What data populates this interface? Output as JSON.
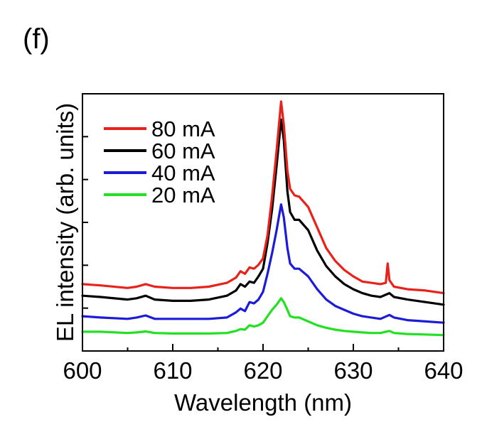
{
  "panel_label": "(f)",
  "chart_data": {
    "type": "line",
    "xlabel": "Wavelength (nm)",
    "ylabel": "EL intensity (arb. units)",
    "xlim": [
      600,
      640
    ],
    "ylim": [
      0,
      1
    ],
    "xticks": [
      600,
      610,
      620,
      630,
      640
    ],
    "y_tick_labels_shown": false,
    "grid": false,
    "legend_position": "top-left",
    "series": [
      {
        "name": "80 mA",
        "color": "#e8211b",
        "points": [
          [
            600,
            0.26
          ],
          [
            602,
            0.255
          ],
          [
            605,
            0.245
          ],
          [
            606,
            0.25
          ],
          [
            607,
            0.26
          ],
          [
            608,
            0.25
          ],
          [
            610,
            0.245
          ],
          [
            612,
            0.245
          ],
          [
            614,
            0.25
          ],
          [
            616,
            0.265
          ],
          [
            617,
            0.285
          ],
          [
            617.5,
            0.31
          ],
          [
            618,
            0.3
          ],
          [
            618.5,
            0.325
          ],
          [
            619,
            0.32
          ],
          [
            619.5,
            0.335
          ],
          [
            620,
            0.36
          ],
          [
            620.5,
            0.45
          ],
          [
            621,
            0.6
          ],
          [
            621.5,
            0.78
          ],
          [
            622,
            0.97
          ],
          [
            622.3,
            0.88
          ],
          [
            622.7,
            0.7
          ],
          [
            623,
            0.63
          ],
          [
            623.5,
            0.605
          ],
          [
            624,
            0.6
          ],
          [
            625,
            0.56
          ],
          [
            626,
            0.48
          ],
          [
            627,
            0.4
          ],
          [
            628,
            0.35
          ],
          [
            629,
            0.315
          ],
          [
            630,
            0.29
          ],
          [
            631,
            0.27
          ],
          [
            632,
            0.265
          ],
          [
            633,
            0.26
          ],
          [
            633.6,
            0.265
          ],
          [
            633.8,
            0.34
          ],
          [
            634,
            0.275
          ],
          [
            634.5,
            0.25
          ],
          [
            636,
            0.24
          ],
          [
            638,
            0.235
          ],
          [
            640,
            0.225
          ]
        ]
      },
      {
        "name": "60 mA",
        "color": "#000000",
        "points": [
          [
            600,
            0.215
          ],
          [
            602,
            0.21
          ],
          [
            605,
            0.2
          ],
          [
            606,
            0.205
          ],
          [
            607,
            0.215
          ],
          [
            608,
            0.2
          ],
          [
            610,
            0.195
          ],
          [
            612,
            0.195
          ],
          [
            614,
            0.2
          ],
          [
            616,
            0.215
          ],
          [
            617,
            0.235
          ],
          [
            617.5,
            0.26
          ],
          [
            618,
            0.25
          ],
          [
            618.5,
            0.27
          ],
          [
            619,
            0.265
          ],
          [
            619.5,
            0.29
          ],
          [
            620,
            0.32
          ],
          [
            620.5,
            0.42
          ],
          [
            621,
            0.55
          ],
          [
            621.5,
            0.72
          ],
          [
            622,
            0.9
          ],
          [
            622.3,
            0.82
          ],
          [
            622.7,
            0.62
          ],
          [
            623,
            0.54
          ],
          [
            623.5,
            0.51
          ],
          [
            624,
            0.51
          ],
          [
            625,
            0.47
          ],
          [
            626,
            0.39
          ],
          [
            627,
            0.33
          ],
          [
            628,
            0.29
          ],
          [
            629,
            0.26
          ],
          [
            630,
            0.24
          ],
          [
            631,
            0.225
          ],
          [
            632,
            0.215
          ],
          [
            633,
            0.21
          ],
          [
            634,
            0.225
          ],
          [
            634.5,
            0.21
          ],
          [
            636,
            0.2
          ],
          [
            638,
            0.19
          ],
          [
            640,
            0.18
          ]
        ]
      },
      {
        "name": "40 mA",
        "color": "#1b1bd8",
        "points": [
          [
            600,
            0.135
          ],
          [
            602,
            0.13
          ],
          [
            605,
            0.125
          ],
          [
            606,
            0.13
          ],
          [
            607,
            0.138
          ],
          [
            608,
            0.125
          ],
          [
            610,
            0.125
          ],
          [
            612,
            0.125
          ],
          [
            614,
            0.125
          ],
          [
            616,
            0.13
          ],
          [
            617,
            0.15
          ],
          [
            617.5,
            0.165
          ],
          [
            618,
            0.155
          ],
          [
            618.5,
            0.19
          ],
          [
            619,
            0.185
          ],
          [
            619.5,
            0.2
          ],
          [
            620,
            0.23
          ],
          [
            620.5,
            0.3
          ],
          [
            621,
            0.38
          ],
          [
            621.5,
            0.47
          ],
          [
            622,
            0.57
          ],
          [
            622.3,
            0.52
          ],
          [
            622.7,
            0.4
          ],
          [
            623,
            0.34
          ],
          [
            623.5,
            0.32
          ],
          [
            624,
            0.32
          ],
          [
            625,
            0.29
          ],
          [
            626,
            0.24
          ],
          [
            627,
            0.2
          ],
          [
            628,
            0.175
          ],
          [
            629,
            0.16
          ],
          [
            630,
            0.145
          ],
          [
            631,
            0.135
          ],
          [
            632,
            0.13
          ],
          [
            633,
            0.125
          ],
          [
            634,
            0.14
          ],
          [
            634.5,
            0.13
          ],
          [
            636,
            0.12
          ],
          [
            638,
            0.115
          ],
          [
            640,
            0.11
          ]
        ]
      },
      {
        "name": "20 mA",
        "color": "#22e022",
        "points": [
          [
            600,
            0.075
          ],
          [
            602,
            0.075
          ],
          [
            605,
            0.07
          ],
          [
            606,
            0.072
          ],
          [
            607,
            0.076
          ],
          [
            608,
            0.07
          ],
          [
            610,
            0.068
          ],
          [
            612,
            0.068
          ],
          [
            614,
            0.068
          ],
          [
            616,
            0.07
          ],
          [
            617,
            0.078
          ],
          [
            617.5,
            0.085
          ],
          [
            618,
            0.083
          ],
          [
            618.5,
            0.1
          ],
          [
            619,
            0.095
          ],
          [
            619.5,
            0.1
          ],
          [
            620,
            0.11
          ],
          [
            620.5,
            0.135
          ],
          [
            621,
            0.16
          ],
          [
            621.5,
            0.18
          ],
          [
            622,
            0.205
          ],
          [
            622.3,
            0.19
          ],
          [
            622.7,
            0.16
          ],
          [
            623,
            0.135
          ],
          [
            623.5,
            0.13
          ],
          [
            624,
            0.13
          ],
          [
            625,
            0.115
          ],
          [
            626,
            0.1
          ],
          [
            627,
            0.09
          ],
          [
            628,
            0.083
          ],
          [
            629,
            0.078
          ],
          [
            630,
            0.075
          ],
          [
            631,
            0.072
          ],
          [
            632,
            0.07
          ],
          [
            633,
            0.07
          ],
          [
            634,
            0.078
          ],
          [
            634.5,
            0.07
          ],
          [
            636,
            0.066
          ],
          [
            638,
            0.064
          ],
          [
            640,
            0.062
          ]
        ]
      }
    ]
  }
}
